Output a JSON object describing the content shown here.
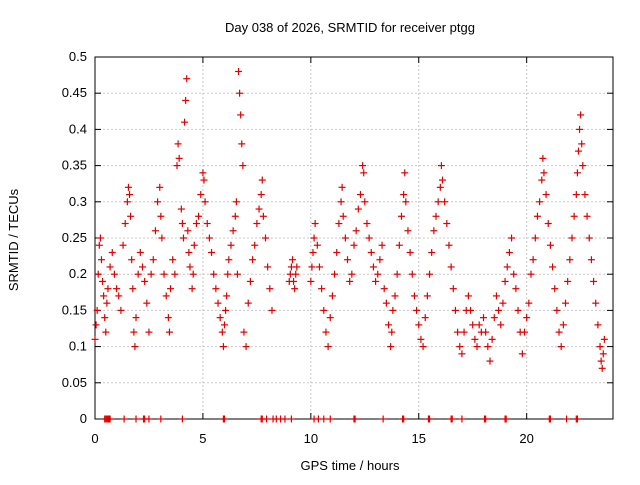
{
  "chart_data": {
    "type": "scatter",
    "title": "Day 038 of 2026, SRMTID for receiver ptgg",
    "xlabel": "GPS time / hours",
    "ylabel": "SRMTID / TECUs",
    "xlim": [
      0,
      24
    ],
    "ylim": [
      0,
      0.5
    ],
    "grid": true,
    "marker": "+",
    "color": "#e00000",
    "x_ticks": [
      0,
      5,
      10,
      15,
      20
    ],
    "x_tick_labels": [
      "0",
      "5",
      "10",
      "15",
      "20"
    ],
    "y_ticks": [
      0,
      0.05,
      0.1,
      0.15,
      0.2,
      0.25,
      0.3,
      0.35,
      0.4,
      0.45,
      0.5
    ],
    "y_tick_labels": [
      "0",
      "0.05",
      "0.1",
      "0.15",
      "0.2",
      "0.25",
      "0.3",
      "0.35",
      "0.4",
      "0.45",
      "0.5"
    ],
    "series": [
      {
        "name": "SRMTID",
        "points": [
          [
            0.0,
            0.11
          ],
          [
            0.05,
            0.13
          ],
          [
            0.1,
            0.15
          ],
          [
            0.15,
            0.2
          ],
          [
            0.2,
            0.24
          ],
          [
            0.25,
            0.25
          ],
          [
            0.3,
            0.22
          ],
          [
            0.35,
            0.19
          ],
          [
            0.4,
            0.17
          ],
          [
            0.45,
            0.14
          ],
          [
            0.5,
            0.12
          ],
          [
            0.55,
            0.16
          ],
          [
            0.6,
            0.18
          ],
          [
            0.7,
            0.21
          ],
          [
            0.8,
            0.23
          ],
          [
            0.9,
            0.2
          ],
          [
            1.0,
            0.18
          ],
          [
            1.1,
            0.17
          ],
          [
            1.2,
            0.15
          ],
          [
            1.3,
            0.24
          ],
          [
            1.4,
            0.27
          ],
          [
            1.5,
            0.3
          ],
          [
            1.55,
            0.32
          ],
          [
            1.6,
            0.31
          ],
          [
            1.65,
            0.28
          ],
          [
            1.7,
            0.22
          ],
          [
            1.75,
            0.18
          ],
          [
            1.8,
            0.12
          ],
          [
            1.85,
            0.1
          ],
          [
            1.9,
            0.14
          ],
          [
            2.0,
            0.2
          ],
          [
            2.1,
            0.23
          ],
          [
            2.2,
            0.21
          ],
          [
            2.3,
            0.19
          ],
          [
            2.4,
            0.16
          ],
          [
            2.5,
            0.12
          ],
          [
            2.6,
            0.2
          ],
          [
            2.7,
            0.22
          ],
          [
            2.8,
            0.26
          ],
          [
            2.9,
            0.3
          ],
          [
            3.0,
            0.32
          ],
          [
            3.05,
            0.28
          ],
          [
            3.1,
            0.25
          ],
          [
            3.2,
            0.2
          ],
          [
            3.3,
            0.17
          ],
          [
            3.4,
            0.14
          ],
          [
            3.45,
            0.12
          ],
          [
            3.5,
            0.18
          ],
          [
            3.6,
            0.22
          ],
          [
            3.7,
            0.2
          ],
          [
            3.8,
            0.35
          ],
          [
            3.85,
            0.38
          ],
          [
            3.9,
            0.36
          ],
          [
            4.0,
            0.29
          ],
          [
            4.05,
            0.27
          ],
          [
            4.1,
            0.25
          ],
          [
            4.15,
            0.41
          ],
          [
            4.2,
            0.44
          ],
          [
            4.25,
            0.47
          ],
          [
            4.3,
            0.26
          ],
          [
            4.35,
            0.23
          ],
          [
            4.4,
            0.21
          ],
          [
            4.5,
            0.18
          ],
          [
            4.55,
            0.2
          ],
          [
            4.6,
            0.24
          ],
          [
            4.7,
            0.27
          ],
          [
            4.8,
            0.28
          ],
          [
            4.9,
            0.31
          ],
          [
            5.0,
            0.34
          ],
          [
            5.05,
            0.33
          ],
          [
            5.1,
            0.3
          ],
          [
            5.2,
            0.27
          ],
          [
            5.3,
            0.25
          ],
          [
            5.4,
            0.23
          ],
          [
            5.5,
            0.2
          ],
          [
            5.6,
            0.18
          ],
          [
            5.7,
            0.16
          ],
          [
            5.8,
            0.14
          ],
          [
            5.9,
            0.12
          ],
          [
            5.95,
            0.1
          ],
          [
            6.0,
            0.13
          ],
          [
            6.05,
            0.15
          ],
          [
            6.1,
            0.17
          ],
          [
            6.15,
            0.2
          ],
          [
            6.2,
            0.22
          ],
          [
            6.3,
            0.24
          ],
          [
            6.4,
            0.26
          ],
          [
            6.5,
            0.28
          ],
          [
            6.55,
            0.3
          ],
          [
            6.6,
            0.2
          ],
          [
            6.65,
            0.48
          ],
          [
            6.7,
            0.45
          ],
          [
            6.75,
            0.42
          ],
          [
            6.8,
            0.38
          ],
          [
            6.85,
            0.35
          ],
          [
            6.9,
            0.12
          ],
          [
            7.0,
            0.1
          ],
          [
            7.1,
            0.16
          ],
          [
            7.2,
            0.19
          ],
          [
            7.3,
            0.22
          ],
          [
            7.4,
            0.24
          ],
          [
            7.5,
            0.27
          ],
          [
            7.6,
            0.29
          ],
          [
            7.7,
            0.31
          ],
          [
            7.75,
            0.33
          ],
          [
            7.8,
            0.28
          ],
          [
            7.9,
            0.25
          ],
          [
            8.0,
            0.21
          ],
          [
            8.1,
            0.18
          ],
          [
            8.2,
            0.15
          ],
          [
            9.0,
            0.19
          ],
          [
            9.05,
            0.2
          ],
          [
            9.1,
            0.21
          ],
          [
            9.15,
            0.22
          ],
          [
            9.2,
            0.19
          ],
          [
            9.25,
            0.18
          ],
          [
            9.3,
            0.2
          ],
          [
            9.35,
            0.21
          ],
          [
            10.0,
            0.19
          ],
          [
            10.05,
            0.21
          ],
          [
            10.1,
            0.23
          ],
          [
            10.15,
            0.25
          ],
          [
            10.2,
            0.27
          ],
          [
            10.3,
            0.24
          ],
          [
            10.4,
            0.21
          ],
          [
            10.5,
            0.18
          ],
          [
            10.6,
            0.15
          ],
          [
            10.7,
            0.12
          ],
          [
            10.8,
            0.1
          ],
          [
            10.9,
            0.14
          ],
          [
            11.0,
            0.17
          ],
          [
            11.1,
            0.2
          ],
          [
            11.2,
            0.23
          ],
          [
            11.3,
            0.27
          ],
          [
            11.4,
            0.3
          ],
          [
            11.45,
            0.32
          ],
          [
            11.5,
            0.28
          ],
          [
            11.6,
            0.25
          ],
          [
            11.7,
            0.22
          ],
          [
            11.8,
            0.19
          ],
          [
            11.9,
            0.2
          ],
          [
            12.0,
            0.24
          ],
          [
            12.1,
            0.26
          ],
          [
            12.2,
            0.29
          ],
          [
            12.3,
            0.31
          ],
          [
            12.4,
            0.35
          ],
          [
            12.45,
            0.34
          ],
          [
            12.5,
            0.3
          ],
          [
            12.6,
            0.27
          ],
          [
            12.7,
            0.25
          ],
          [
            12.8,
            0.23
          ],
          [
            12.9,
            0.21
          ],
          [
            13.0,
            0.19
          ],
          [
            13.1,
            0.2
          ],
          [
            13.2,
            0.22
          ],
          [
            13.3,
            0.24
          ],
          [
            13.4,
            0.18
          ],
          [
            13.5,
            0.16
          ],
          [
            13.6,
            0.13
          ],
          [
            13.7,
            0.1
          ],
          [
            13.75,
            0.12
          ],
          [
            13.8,
            0.15
          ],
          [
            13.9,
            0.17
          ],
          [
            14.0,
            0.2
          ],
          [
            14.1,
            0.24
          ],
          [
            14.2,
            0.28
          ],
          [
            14.3,
            0.31
          ],
          [
            14.35,
            0.34
          ],
          [
            14.4,
            0.3
          ],
          [
            14.5,
            0.26
          ],
          [
            14.6,
            0.23
          ],
          [
            14.7,
            0.2
          ],
          [
            14.8,
            0.17
          ],
          [
            14.9,
            0.15
          ],
          [
            15.0,
            0.13
          ],
          [
            15.1,
            0.11
          ],
          [
            15.2,
            0.1
          ],
          [
            15.3,
            0.14
          ],
          [
            15.4,
            0.17
          ],
          [
            15.5,
            0.2
          ],
          [
            15.6,
            0.23
          ],
          [
            15.7,
            0.26
          ],
          [
            15.8,
            0.28
          ],
          [
            15.9,
            0.3
          ],
          [
            16.0,
            0.32
          ],
          [
            16.05,
            0.35
          ],
          [
            16.1,
            0.33
          ],
          [
            16.2,
            0.3
          ],
          [
            16.3,
            0.27
          ],
          [
            16.4,
            0.24
          ],
          [
            16.5,
            0.21
          ],
          [
            16.6,
            0.18
          ],
          [
            16.7,
            0.15
          ],
          [
            16.8,
            0.12
          ],
          [
            16.9,
            0.1
          ],
          [
            17.0,
            0.09
          ],
          [
            17.1,
            0.12
          ],
          [
            17.2,
            0.15
          ],
          [
            17.3,
            0.17
          ],
          [
            17.4,
            0.15
          ],
          [
            17.5,
            0.13
          ],
          [
            17.6,
            0.11
          ],
          [
            17.7,
            0.1
          ],
          [
            17.8,
            0.13
          ],
          [
            17.9,
            0.12
          ],
          [
            18.0,
            0.14
          ],
          [
            18.1,
            0.12
          ],
          [
            18.2,
            0.1
          ],
          [
            18.3,
            0.08
          ],
          [
            18.4,
            0.11
          ],
          [
            18.5,
            0.14
          ],
          [
            18.6,
            0.17
          ],
          [
            18.7,
            0.15
          ],
          [
            18.8,
            0.13
          ],
          [
            18.9,
            0.16
          ],
          [
            19.0,
            0.19
          ],
          [
            19.1,
            0.21
          ],
          [
            19.2,
            0.23
          ],
          [
            19.3,
            0.25
          ],
          [
            19.4,
            0.2
          ],
          [
            19.5,
            0.18
          ],
          [
            19.6,
            0.15
          ],
          [
            19.7,
            0.12
          ],
          [
            19.8,
            0.09
          ],
          [
            19.9,
            0.12
          ],
          [
            20.0,
            0.14
          ],
          [
            20.1,
            0.16
          ],
          [
            20.2,
            0.2
          ],
          [
            20.3,
            0.22
          ],
          [
            20.4,
            0.25
          ],
          [
            20.5,
            0.28
          ],
          [
            20.6,
            0.3
          ],
          [
            20.7,
            0.33
          ],
          [
            20.75,
            0.36
          ],
          [
            20.8,
            0.34
          ],
          [
            20.9,
            0.31
          ],
          [
            21.0,
            0.27
          ],
          [
            21.1,
            0.24
          ],
          [
            21.2,
            0.21
          ],
          [
            21.3,
            0.18
          ],
          [
            21.4,
            0.15
          ],
          [
            21.5,
            0.12
          ],
          [
            21.6,
            0.1
          ],
          [
            21.7,
            0.13
          ],
          [
            21.8,
            0.16
          ],
          [
            21.9,
            0.19
          ],
          [
            22.0,
            0.22
          ],
          [
            22.1,
            0.25
          ],
          [
            22.2,
            0.28
          ],
          [
            22.3,
            0.31
          ],
          [
            22.35,
            0.34
          ],
          [
            22.4,
            0.37
          ],
          [
            22.45,
            0.4
          ],
          [
            22.5,
            0.42
          ],
          [
            22.55,
            0.38
          ],
          [
            22.6,
            0.35
          ],
          [
            22.7,
            0.31
          ],
          [
            22.8,
            0.28
          ],
          [
            22.9,
            0.25
          ],
          [
            23.0,
            0.22
          ],
          [
            23.1,
            0.19
          ],
          [
            23.2,
            0.16
          ],
          [
            23.3,
            0.13
          ],
          [
            23.4,
            0.1
          ],
          [
            23.45,
            0.08
          ],
          [
            23.5,
            0.07
          ],
          [
            23.55,
            0.09
          ],
          [
            23.6,
            0.11
          ]
        ]
      },
      {
        "name": "zeros",
        "points": [
          [
            0.45,
            0
          ],
          [
            0.5,
            0
          ],
          [
            0.55,
            0
          ],
          [
            0.6,
            0
          ],
          [
            0.65,
            0
          ],
          [
            0.7,
            0
          ],
          [
            1.35,
            0
          ],
          [
            1.9,
            0
          ],
          [
            2.25,
            0
          ],
          [
            2.3,
            0
          ],
          [
            2.5,
            0
          ],
          [
            3.05,
            0
          ],
          [
            4.05,
            0
          ],
          [
            5.95,
            0
          ],
          [
            6.0,
            0
          ],
          [
            7.7,
            0
          ],
          [
            7.75,
            0
          ],
          [
            7.95,
            0
          ],
          [
            8.25,
            0
          ],
          [
            8.4,
            0
          ],
          [
            8.6,
            0
          ],
          [
            8.8,
            0
          ],
          [
            9.1,
            0
          ],
          [
            10.15,
            0
          ],
          [
            10.35,
            0
          ],
          [
            10.6,
            0
          ],
          [
            10.9,
            0
          ],
          [
            12.0,
            0
          ],
          [
            12.05,
            0
          ],
          [
            13.35,
            0
          ],
          [
            14.25,
            0
          ],
          [
            14.3,
            0
          ],
          [
            15.45,
            0
          ],
          [
            15.5,
            0
          ],
          [
            16.5,
            0
          ],
          [
            16.55,
            0
          ],
          [
            17.0,
            0
          ],
          [
            18.05,
            0
          ],
          [
            18.1,
            0
          ],
          [
            19.0,
            0
          ],
          [
            19.05,
            0
          ],
          [
            21.05,
            0
          ],
          [
            21.1,
            0
          ],
          [
            21.85,
            0
          ],
          [
            22.3,
            0
          ],
          [
            22.35,
            0
          ]
        ]
      }
    ]
  }
}
